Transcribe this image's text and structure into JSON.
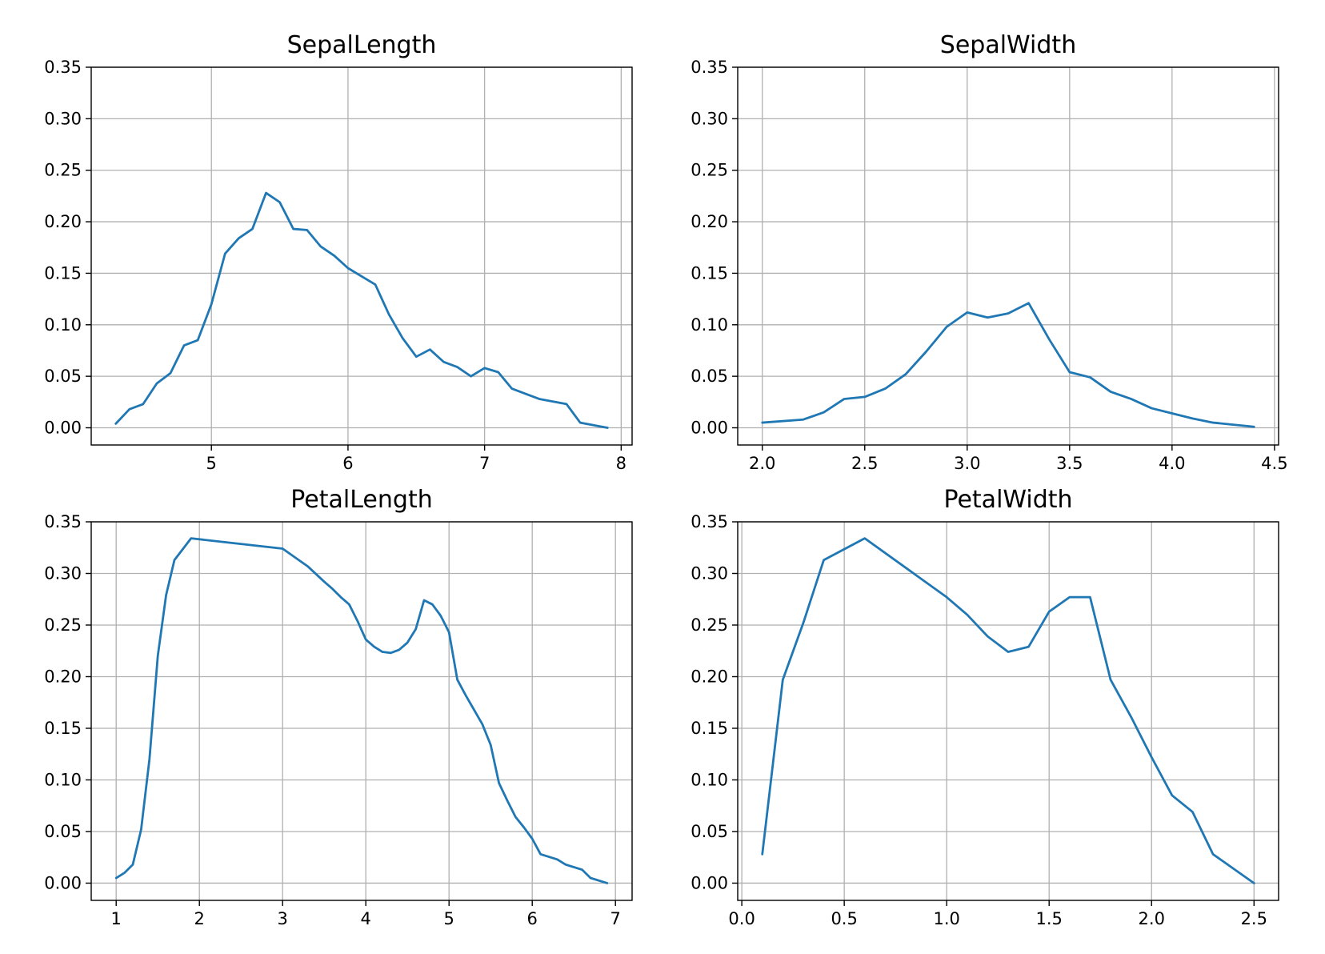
{
  "colors": {
    "line": "#1f77b4",
    "grid": "#b0b0b0",
    "frame": "#000000"
  },
  "chart_data": [
    {
      "type": "line",
      "title": "SepalLength",
      "xlim": [
        4.12,
        8.08
      ],
      "ylim": [
        -0.0167,
        0.35
      ],
      "xticks": [
        5,
        6,
        7,
        8
      ],
      "xtick_labels": [
        "5",
        "6",
        "7",
        "8"
      ],
      "yticks": [
        0,
        0.05,
        0.1,
        0.15,
        0.2,
        0.25,
        0.3,
        0.35
      ],
      "ytick_labels": [
        "0.00",
        "0.05",
        "0.10",
        "0.15",
        "0.20",
        "0.25",
        "0.30",
        "0.35"
      ],
      "grid": true,
      "x": [
        4.3,
        4.4,
        4.5,
        4.6,
        4.7,
        4.8,
        4.9,
        5.0,
        5.1,
        5.2,
        5.3,
        5.4,
        5.5,
        5.6,
        5.7,
        5.8,
        5.9,
        6.0,
        6.1,
        6.2,
        6.3,
        6.4,
        6.5,
        6.6,
        6.7,
        6.8,
        6.9,
        7.0,
        7.1,
        7.2,
        7.3,
        7.4,
        7.6,
        7.7,
        7.9
      ],
      "y": [
        0.004,
        0.018,
        0.023,
        0.043,
        0.053,
        0.08,
        0.085,
        0.12,
        0.169,
        0.184,
        0.193,
        0.228,
        0.219,
        0.193,
        0.192,
        0.176,
        0.167,
        0.155,
        0.147,
        0.139,
        0.11,
        0.087,
        0.069,
        0.076,
        0.064,
        0.059,
        0.05,
        0.058,
        0.054,
        0.038,
        0.033,
        0.028,
        0.023,
        0.005,
        0.0
      ]
    },
    {
      "type": "line",
      "title": "SepalWidth",
      "xlim": [
        1.88,
        4.52
      ],
      "ylim": [
        -0.0167,
        0.35
      ],
      "xticks": [
        2.0,
        2.5,
        3.0,
        3.5,
        4.0,
        4.5
      ],
      "xtick_labels": [
        "2.0",
        "2.5",
        "3.0",
        "3.5",
        "4.0",
        "4.5"
      ],
      "yticks": [
        0,
        0.05,
        0.1,
        0.15,
        0.2,
        0.25,
        0.3,
        0.35
      ],
      "ytick_labels": [
        "0.00",
        "0.05",
        "0.10",
        "0.15",
        "0.20",
        "0.25",
        "0.30",
        "0.35"
      ],
      "grid": true,
      "x": [
        2.0,
        2.2,
        2.3,
        2.4,
        2.5,
        2.6,
        2.7,
        2.8,
        2.9,
        3.0,
        3.1,
        3.2,
        3.3,
        3.4,
        3.5,
        3.6,
        3.7,
        3.8,
        3.9,
        4.0,
        4.1,
        4.2,
        4.4
      ],
      "y": [
        0.005,
        0.008,
        0.015,
        0.028,
        0.03,
        0.038,
        0.052,
        0.074,
        0.098,
        0.112,
        0.107,
        0.111,
        0.121,
        0.086,
        0.054,
        0.049,
        0.035,
        0.028,
        0.019,
        0.014,
        0.009,
        0.005,
        0.001
      ]
    },
    {
      "type": "line",
      "title": "PetalLength",
      "xlim": [
        0.7,
        7.2
      ],
      "ylim": [
        -0.0167,
        0.35
      ],
      "xticks": [
        1,
        2,
        3,
        4,
        5,
        6,
        7
      ],
      "xtick_labels": [
        "1",
        "2",
        "3",
        "4",
        "5",
        "6",
        "7"
      ],
      "yticks": [
        0,
        0.05,
        0.1,
        0.15,
        0.2,
        0.25,
        0.3,
        0.35
      ],
      "ytick_labels": [
        "0.00",
        "0.05",
        "0.10",
        "0.15",
        "0.20",
        "0.25",
        "0.30",
        "0.35"
      ],
      "grid": true,
      "x": [
        1.0,
        1.1,
        1.2,
        1.3,
        1.4,
        1.5,
        1.6,
        1.7,
        1.9,
        3.0,
        3.3,
        3.5,
        3.6,
        3.7,
        3.8,
        3.9,
        4.0,
        4.1,
        4.2,
        4.3,
        4.4,
        4.5,
        4.6,
        4.7,
        4.8,
        4.9,
        5.0,
        5.1,
        5.2,
        5.3,
        5.4,
        5.5,
        5.6,
        5.7,
        5.8,
        5.9,
        6.0,
        6.1,
        6.3,
        6.4,
        6.6,
        6.7,
        6.9
      ],
      "y": [
        0.005,
        0.01,
        0.018,
        0.052,
        0.12,
        0.22,
        0.279,
        0.313,
        0.334,
        0.324,
        0.307,
        0.292,
        0.285,
        0.277,
        0.27,
        0.254,
        0.236,
        0.229,
        0.224,
        0.223,
        0.226,
        0.233,
        0.246,
        0.274,
        0.27,
        0.259,
        0.243,
        0.197,
        0.182,
        0.168,
        0.154,
        0.134,
        0.097,
        0.08,
        0.064,
        0.054,
        0.043,
        0.028,
        0.023,
        0.018,
        0.013,
        0.005,
        0.0
      ]
    },
    {
      "type": "line",
      "title": "PetalWidth",
      "xlim": [
        -0.02,
        2.62
      ],
      "ylim": [
        -0.0167,
        0.35
      ],
      "xticks": [
        0.0,
        0.5,
        1.0,
        1.5,
        2.0,
        2.5
      ],
      "xtick_labels": [
        "0.0",
        "0.5",
        "1.0",
        "1.5",
        "2.0",
        "2.5"
      ],
      "yticks": [
        0,
        0.05,
        0.1,
        0.15,
        0.2,
        0.25,
        0.3,
        0.35
      ],
      "ytick_labels": [
        "0.00",
        "0.05",
        "0.10",
        "0.15",
        "0.20",
        "0.25",
        "0.30",
        "0.35"
      ],
      "grid": true,
      "x": [
        0.1,
        0.2,
        0.3,
        0.4,
        0.6,
        1.0,
        1.1,
        1.2,
        1.3,
        1.4,
        1.5,
        1.6,
        1.7,
        1.8,
        1.9,
        2.0,
        2.1,
        2.2,
        2.3,
        2.5
      ],
      "y": [
        0.028,
        0.197,
        0.252,
        0.313,
        0.334,
        0.277,
        0.26,
        0.239,
        0.224,
        0.229,
        0.263,
        0.277,
        0.277,
        0.197,
        0.161,
        0.122,
        0.085,
        0.069,
        0.028,
        0.0
      ]
    }
  ]
}
